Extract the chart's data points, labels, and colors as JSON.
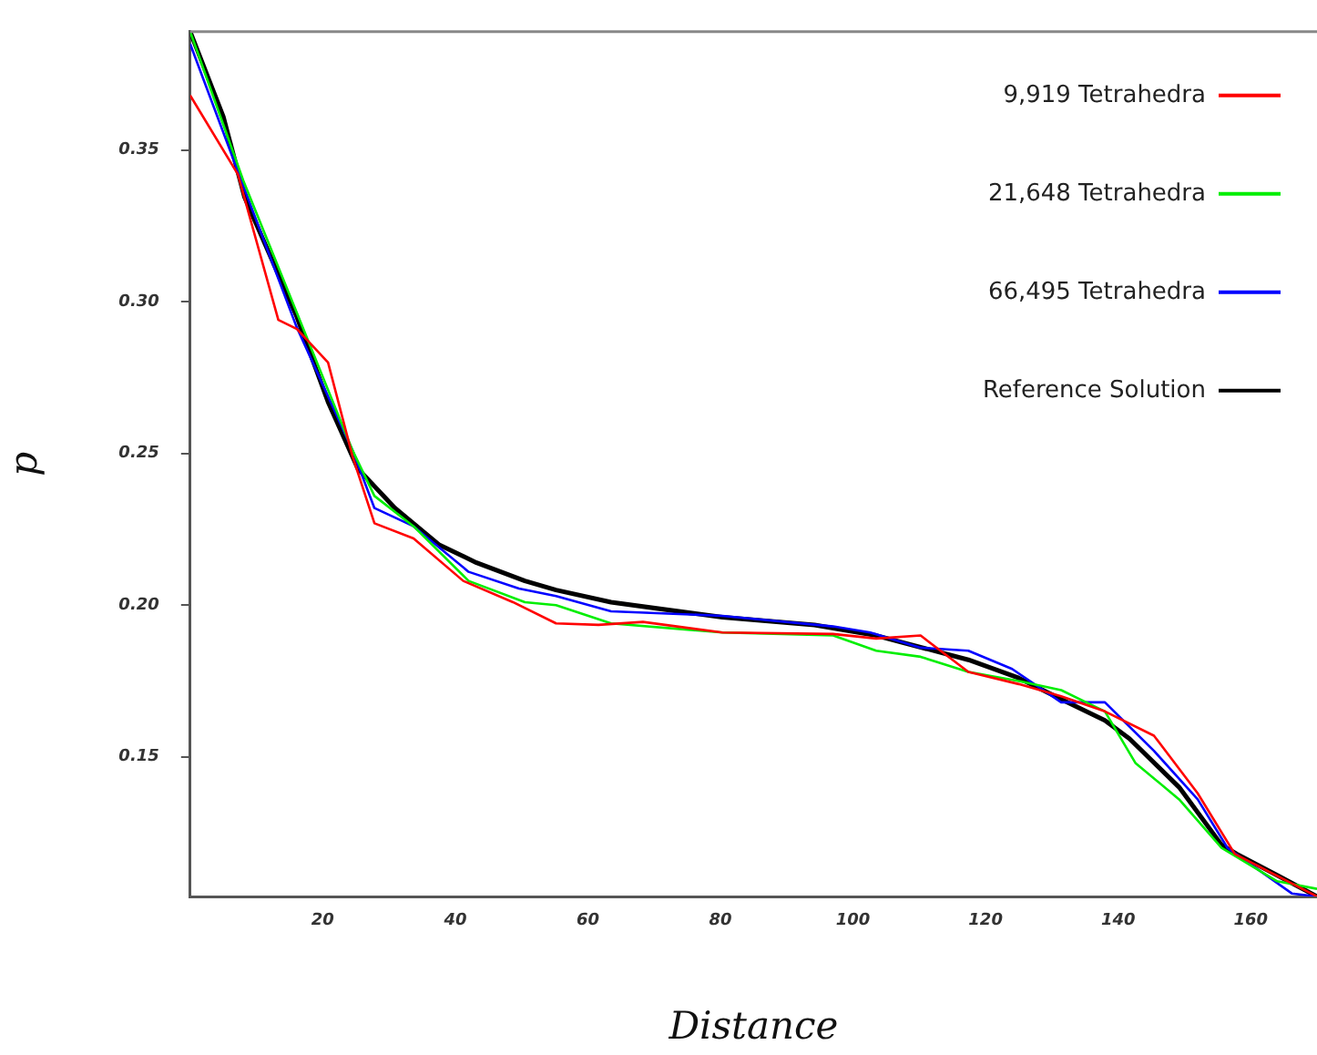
{
  "chart_data": {
    "type": "line",
    "xlabel": "Distance",
    "ylabel": "p",
    "xlim": [
      0,
      170
    ],
    "ylim": [
      0.104,
      0.389
    ],
    "xticks": [
      20,
      40,
      60,
      80,
      100,
      120,
      140,
      160
    ],
    "yticks": [
      0.15,
      {
        "value": 0.2,
        "label": "0.20"
      },
      0.25,
      {
        "value": 0.3,
        "label": "0.30"
      },
      0.35
    ],
    "grid": false,
    "legend": "top right",
    "marker": "none",
    "line_style": "solid",
    "series": [
      {
        "name": "9,919 Tetrahedra",
        "color": "#ff0000",
        "x": [
          0,
          7.2,
          13.3,
          16.1,
          20.8,
          24.5,
          27.8,
          33.7,
          41.2,
          48.7,
          55.2,
          61.6,
          68.3,
          80.3,
          97,
          103.5,
          110.2,
          117.4,
          125,
          131.4,
          138,
          145.4,
          152,
          157.6,
          170
        ],
        "values": [
          0.368,
          0.342,
          0.294,
          0.291,
          0.28,
          0.249,
          0.227,
          0.222,
          0.208,
          0.201,
          0.194,
          0.1935,
          0.1945,
          0.191,
          0.1905,
          0.189,
          0.19,
          0.178,
          0.174,
          0.17,
          0.165,
          0.157,
          0.138,
          0.118,
          0.104
        ]
      },
      {
        "name": "21,648 Tetrahedra",
        "color": "#00ee00",
        "x": [
          0,
          8,
          24.5,
          27.8,
          33.7,
          42,
          50.5,
          55.2,
          63.5,
          80.3,
          97,
          103.5,
          110.2,
          117.4,
          125,
          131.4,
          138,
          142.6,
          149.2,
          155.6,
          164,
          170
        ],
        "values": [
          0.389,
          0.34,
          0.251,
          0.236,
          0.226,
          0.208,
          0.201,
          0.2,
          0.194,
          0.191,
          0.19,
          0.185,
          0.183,
          0.178,
          0.175,
          0.172,
          0.165,
          0.148,
          0.136,
          0.12,
          0.109,
          0.1065
        ]
      },
      {
        "name": "66,495 Tetrahedra",
        "color": "#0000ff",
        "x": [
          0,
          7.7,
          16,
          24.5,
          27.8,
          33.7,
          42,
          49.6,
          55.2,
          63.5,
          80.3,
          97,
          102.6,
          110.2,
          117.4,
          124,
          131.4,
          138,
          145.4,
          152,
          156.5,
          166.2,
          170
        ],
        "values": [
          0.385,
          0.34,
          0.292,
          0.251,
          0.232,
          0.226,
          0.211,
          0.2055,
          0.203,
          0.198,
          0.1965,
          0.193,
          0.191,
          0.186,
          0.185,
          0.179,
          0.168,
          0.168,
          0.152,
          0.136,
          0.12,
          0.105,
          0.104
        ]
      },
      {
        "name": "Reference Solution",
        "color": "#000000",
        "x": [
          0,
          5,
          8.2,
          16.1,
          20.8,
          25.3,
          30.9,
          37.5,
          43.2,
          50.5,
          55.2,
          63.5,
          80.3,
          94.2,
          103.5,
          117.4,
          125,
          131.4,
          138,
          141.7,
          149.2,
          155.6,
          157.9,
          164,
          170
        ],
        "values": [
          0.389,
          0.361,
          0.3345,
          0.295,
          0.267,
          0.245,
          0.232,
          0.22,
          0.214,
          0.208,
          0.205,
          0.201,
          0.196,
          0.1935,
          0.19,
          0.182,
          0.176,
          0.169,
          0.162,
          0.156,
          0.14,
          0.121,
          0.118,
          0.111,
          0.104
        ]
      }
    ]
  }
}
